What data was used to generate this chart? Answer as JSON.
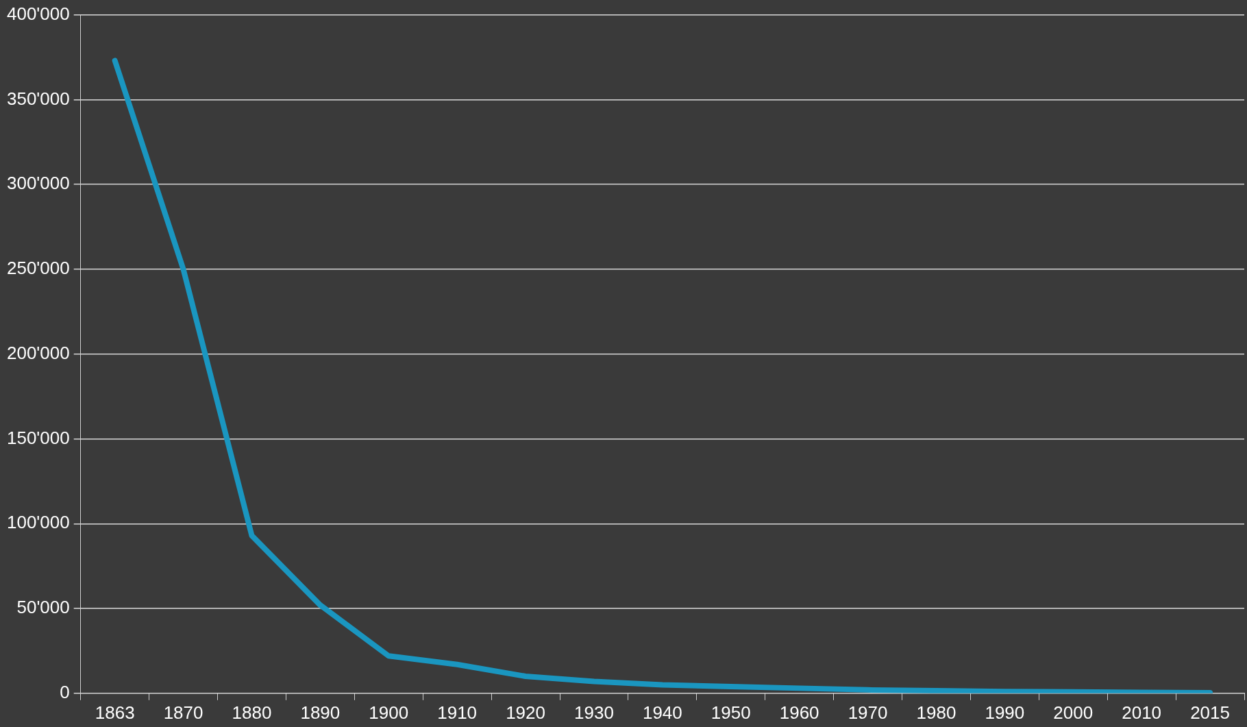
{
  "chart_data": {
    "type": "line",
    "categories": [
      "1863",
      "1870",
      "1880",
      "1890",
      "1900",
      "1910",
      "1920",
      "1930",
      "1940",
      "1950",
      "1960",
      "1970",
      "1980",
      "1990",
      "2000",
      "2010",
      "2015"
    ],
    "series": [
      {
        "color": "#1a96c0",
        "values": [
          373000,
          250000,
          93000,
          52000,
          22000,
          17000,
          10000,
          7000,
          5000,
          4000,
          3000,
          2000,
          1500,
          1000,
          800,
          500,
          300
        ]
      }
    ],
    "ylim": [
      0,
      400000
    ],
    "yticks": [
      {
        "value": 0,
        "label": "0"
      },
      {
        "value": 50000,
        "label": "50'000"
      },
      {
        "value": 100000,
        "label": "100'000"
      },
      {
        "value": 150000,
        "label": "150'000"
      },
      {
        "value": 200000,
        "label": "200'000"
      },
      {
        "value": 250000,
        "label": "250'000"
      },
      {
        "value": 300000,
        "label": "300'000"
      },
      {
        "value": 350000,
        "label": "350'000"
      },
      {
        "value": 400000,
        "label": "400'000"
      }
    ],
    "grid": "y",
    "legend": false,
    "marker": "none",
    "line_style": "solid"
  }
}
